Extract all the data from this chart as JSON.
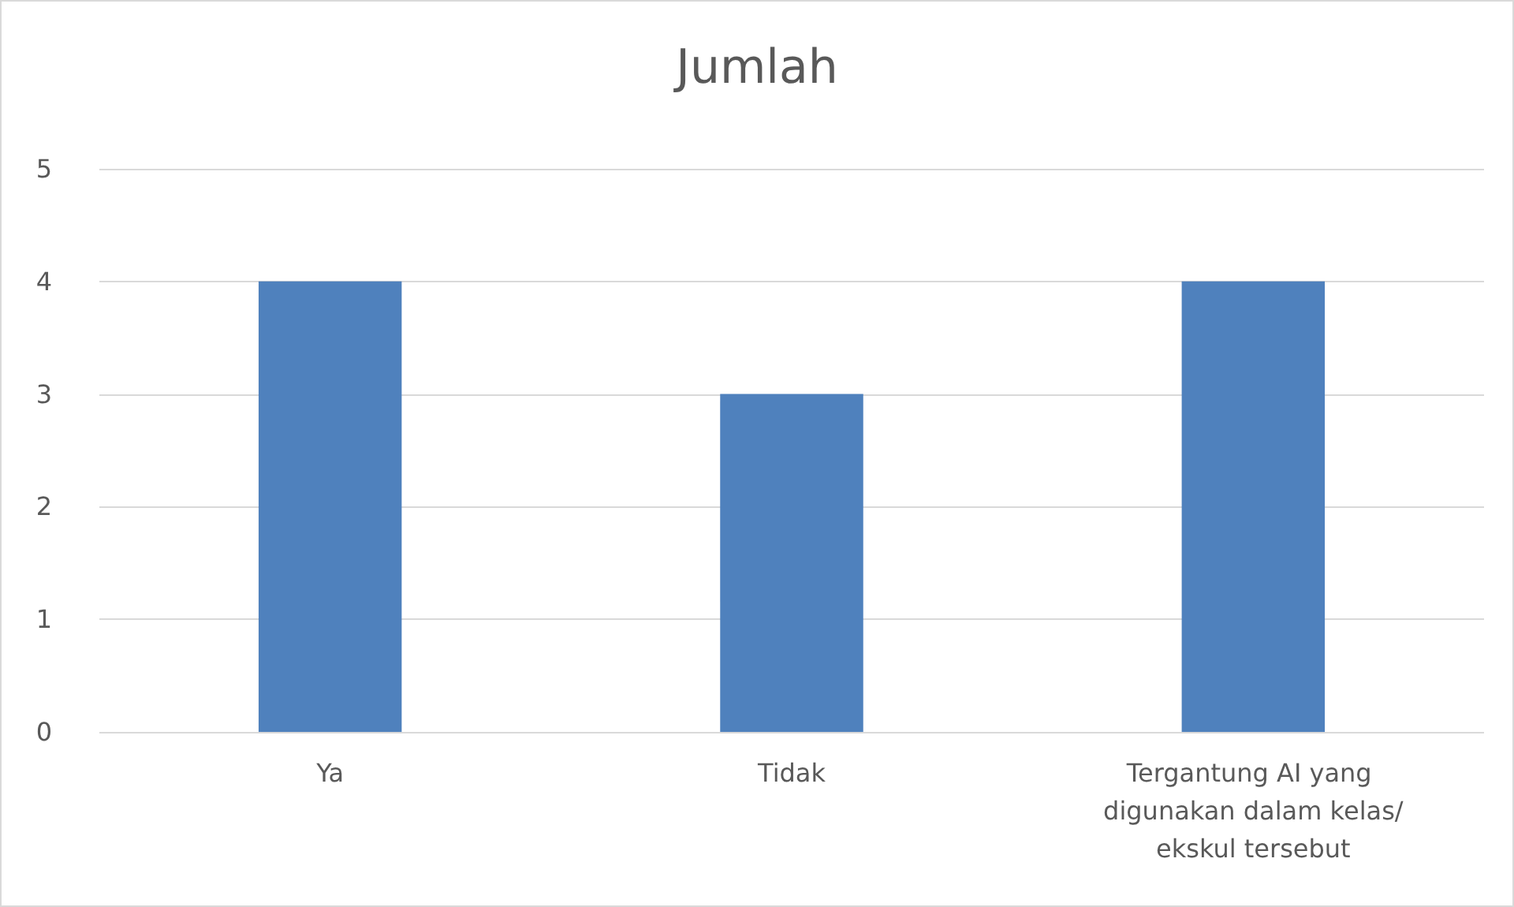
{
  "chart_data": {
    "type": "bar",
    "title": "Jumlah",
    "categories": [
      "Ya",
      "Tidak",
      "Tergantung AI yang digunakan dalam kelas/ekskul tersebut"
    ],
    "values": [
      4,
      3,
      4
    ],
    "color": "#4f81bd",
    "ylim": [
      0,
      5
    ],
    "yticks": [
      0,
      1,
      2,
      3,
      4,
      5
    ],
    "grid": "y"
  }
}
